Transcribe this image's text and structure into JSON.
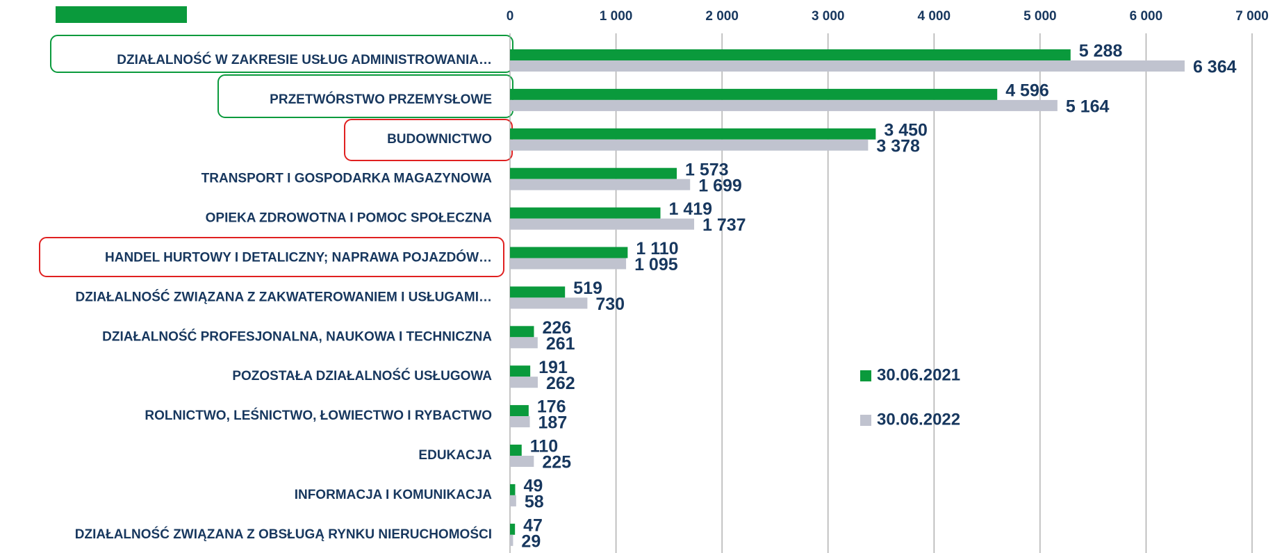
{
  "chart_data": {
    "type": "bar",
    "orientation": "horizontal",
    "categories": [
      "DZIAŁALNOŚĆ W ZAKRESIE USŁUG ADMINISTROWANIA…",
      "PRZETWÓRSTWO PRZEMYSŁOWE",
      "BUDOWNICTWO",
      "TRANSPORT I GOSPODARKA MAGAZYNOWA",
      "OPIEKA ZDROWOTNA I POMOC SPOŁECZNA",
      "HANDEL HURTOWY I DETALICZNY; NAPRAWA POJAZDÓW…",
      "DZIAŁALNOŚĆ ZWIĄZANA Z ZAKWATEROWANIEM I USŁUGAMI…",
      "DZIAŁALNOŚĆ PROFESJONALNA, NAUKOWA I TECHNICZNA",
      "POZOSTAŁA DZIAŁALNOŚĆ USŁUGOWA",
      "ROLNICTWO, LEŚNICTWO, ŁOWIECTWO I RYBACTWO",
      "EDUKACJA",
      "INFORMACJA I KOMUNIKACJA",
      "DZIAŁALNOŚĆ ZWIĄZANA Z OBSŁUGĄ RYNKU NIERUCHOMOŚCI"
    ],
    "series": [
      {
        "name": "30.06.2021",
        "color": "#0a9a3c",
        "values": [
          5288,
          4596,
          3450,
          1573,
          1419,
          1110,
          519,
          226,
          191,
          176,
          110,
          49,
          47
        ],
        "value_labels": [
          "5 288",
          "4 596",
          "3 450",
          "1 573",
          "1 419",
          "1 110",
          "519",
          "226",
          "191",
          "176",
          "110",
          "49",
          "47"
        ]
      },
      {
        "name": "30.06.2022",
        "color": "#c0c3cf",
        "values": [
          6364,
          5164,
          3378,
          1699,
          1737,
          1095,
          730,
          261,
          262,
          187,
          225,
          58,
          29
        ],
        "value_labels": [
          "6 364",
          "5 164",
          "3 378",
          "1 699",
          "1 737",
          "1 095",
          "730",
          "261",
          "262",
          "187",
          "225",
          "58",
          "29"
        ]
      }
    ],
    "xlim": [
      0,
      7000
    ],
    "xticks": [
      0,
      {
        "value": 1000,
        "label": "1 000"
      },
      {
        "value": 2000,
        "label": "2 000"
      },
      {
        "value": 3000,
        "label": "3 000"
      },
      {
        "value": 4000,
        "label": "4 000"
      },
      {
        "value": 5000,
        "label": "5 000"
      },
      {
        "value": 6000,
        "label": "6 000"
      },
      {
        "value": 7000,
        "label": "7 000"
      }
    ],
    "grid": true
  }
}
